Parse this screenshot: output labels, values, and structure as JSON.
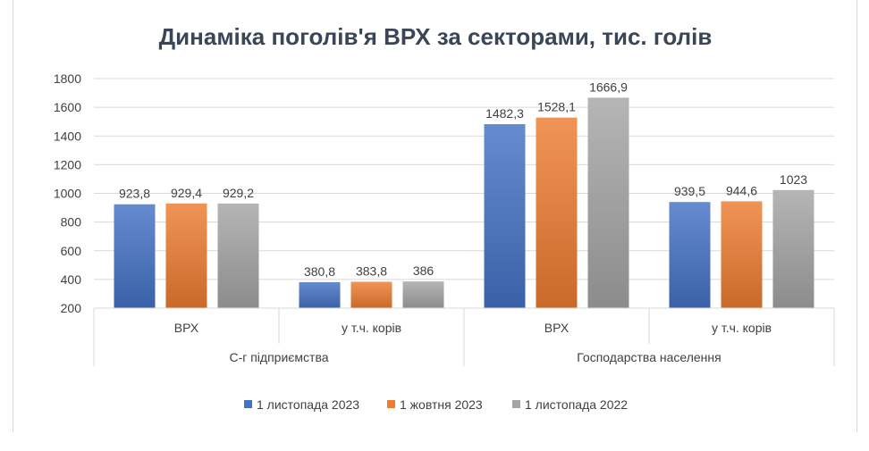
{
  "chart_data": {
    "type": "bar",
    "title": "Динаміка поголів'я ВРХ за секторами, тис. голів",
    "xlabel": "",
    "ylabel": "",
    "ylim": [
      200,
      1800
    ],
    "yticks": [
      "1800",
      "1600",
      "1400",
      "1200",
      "1000",
      "800",
      "600",
      "400",
      "200"
    ],
    "grid": true,
    "legend_position": "bottom",
    "groups": [
      {
        "name": "С-г підприємства",
        "categories": [
          "ВРХ",
          "у т.ч. корів"
        ]
      },
      {
        "name": "Господарства населення",
        "categories": [
          "ВРХ",
          "у т.ч. корів"
        ]
      }
    ],
    "categories": [
      "ВРХ",
      "у т.ч. корів",
      "ВРХ",
      "у т.ч. корів"
    ],
    "series": [
      {
        "name": "1 листопада 2023",
        "color": "#4472c4",
        "values": [
          923.8,
          380.8,
          1482.3,
          939.5
        ],
        "labels": [
          "923,8",
          "380,8",
          "1482,3",
          "939,5"
        ]
      },
      {
        "name": "1 жовтня 2023",
        "color": "#ed7d31",
        "values": [
          929.4,
          383.8,
          1528.1,
          944.6
        ],
        "labels": [
          "929,4",
          "383,8",
          "1528,1",
          "944,6"
        ]
      },
      {
        "name": "1 листопада 2022",
        "color": "#a5a5a5",
        "values": [
          929.2,
          386,
          1666.9,
          1023
        ],
        "labels": [
          "929,2",
          "386",
          "1666,9",
          "1023"
        ]
      }
    ]
  }
}
